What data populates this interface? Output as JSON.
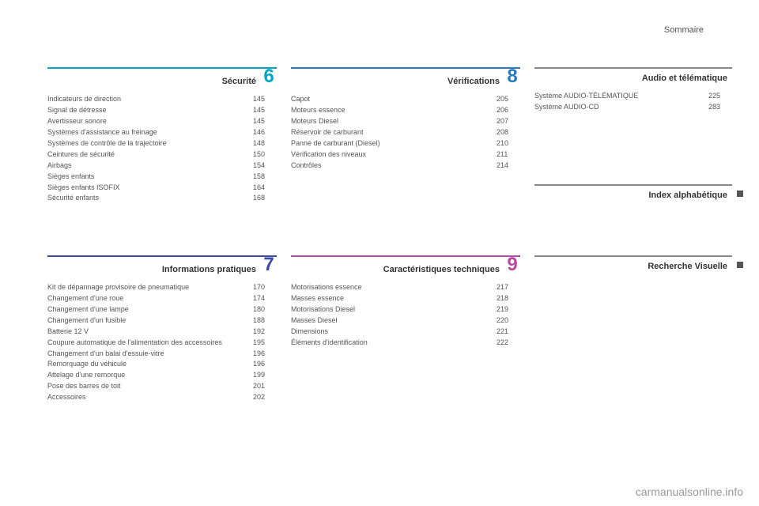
{
  "header": "Sommaire",
  "watermark": "carmanualsonline.info",
  "sections": {
    "securite": {
      "title": "Sécurité",
      "number": "6",
      "color": "#00a7c7",
      "items": [
        {
          "label": "Indicateurs de direction",
          "page": "145"
        },
        {
          "label": "Signal de détresse",
          "page": "145"
        },
        {
          "label": "Avertisseur sonore",
          "page": "145"
        },
        {
          "label": "Systèmes d'assistance au freinage",
          "page": "146"
        },
        {
          "label": "Systèmes de contrôle de la trajectoire",
          "page": "148"
        },
        {
          "label": "Ceintures de sécurité",
          "page": "150"
        },
        {
          "label": "Airbags",
          "page": "154"
        },
        {
          "label": "Sièges enfants",
          "page": "158"
        },
        {
          "label": "Sièges enfants ISOFIX",
          "page": "164"
        },
        {
          "label": "Sécurité enfants",
          "page": "168"
        }
      ]
    },
    "verifications": {
      "title": "Vérifications",
      "number": "8",
      "color": "#2a7bbf",
      "items": [
        {
          "label": "Capot",
          "page": "205"
        },
        {
          "label": "Moteurs essence",
          "page": "206"
        },
        {
          "label": "Moteurs Diesel",
          "page": "207"
        },
        {
          "label": "Réservoir de carburant",
          "page": "208"
        },
        {
          "label": "Panne de carburant (Diesel)",
          "page": "210"
        },
        {
          "label": "Vérification des niveaux",
          "page": "211"
        },
        {
          "label": "Contrôles",
          "page": "214"
        }
      ]
    },
    "audio": {
      "title": "Audio et télématique",
      "number": "",
      "color": "#777777",
      "items": [
        {
          "label": "Système AUDIO-TÉLÉMATIQUE",
          "page": "225"
        },
        {
          "label": "Système AUDIO-CD",
          "page": "283"
        }
      ]
    },
    "index": {
      "title": "Index alphabétique",
      "color": "#777777"
    },
    "infos": {
      "title": "Informations pratiques",
      "number": "7",
      "color": "#3b4aa3",
      "items": [
        {
          "label": "Kit de dépannage provisoire de pneumatique",
          "page": "170"
        },
        {
          "label": "Changement d'une roue",
          "page": "174"
        },
        {
          "label": "Changement d'une lampe",
          "page": "180"
        },
        {
          "label": "Changement d'un fusible",
          "page": "188"
        },
        {
          "label": "Batterie 12 V",
          "page": "192"
        },
        {
          "label": "Coupure automatique de l'alimentation des accessoires",
          "page": "195"
        },
        {
          "label": "Changement d'un balai d'essuie-vitre",
          "page": "196"
        },
        {
          "label": "Remorquage du véhicule",
          "page": "196"
        },
        {
          "label": "Attelage d'une remorque",
          "page": "199"
        },
        {
          "label": "Pose des barres de toit",
          "page": "201"
        },
        {
          "label": "Accessoires",
          "page": "202"
        }
      ]
    },
    "caract": {
      "title": "Caractéristiques techniques",
      "number": "9",
      "color": "#b84aa0",
      "items": [
        {
          "label": "Motorisations essence",
          "page": "217"
        },
        {
          "label": "Masses essence",
          "page": "218"
        },
        {
          "label": "Motorisations Diesel",
          "page": "219"
        },
        {
          "label": "Masses Diesel",
          "page": "220"
        },
        {
          "label": "Dimensions",
          "page": "221"
        },
        {
          "label": "Éléments d'identification",
          "page": "222"
        }
      ]
    },
    "recherche": {
      "title": "Recherche Visuelle",
      "color": "#777777"
    }
  }
}
